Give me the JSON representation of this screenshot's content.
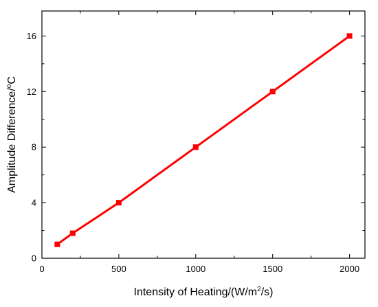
{
  "chart_data": {
    "type": "line",
    "xlabel": {
      "main": "Intensity of Heating/(W/m",
      "sup": "2",
      "tail": "/s)"
    },
    "ylabel": {
      "main": "Amplitude Difference/",
      "sup": "o",
      "tail": "C"
    },
    "xlim": [
      0,
      2100
    ],
    "ylim": [
      0,
      17.8
    ],
    "x_ticks": [
      0,
      500,
      1000,
      1500,
      2000
    ],
    "y_ticks": [
      0,
      4,
      8,
      12,
      16
    ],
    "x_tick_labels": [
      "0",
      "500",
      "1000",
      "1500",
      "2000"
    ],
    "y_tick_labels": [
      "0",
      "4",
      "8",
      "12",
      "16"
    ],
    "series": [
      {
        "color": "#ff0000",
        "marker": "square",
        "x": [
          100,
          200,
          500,
          1000,
          1500,
          2000
        ],
        "y": [
          1.0,
          1.8,
          4.0,
          8.0,
          12.0,
          16.0
        ]
      }
    ],
    "grid": false,
    "legend": "none"
  }
}
